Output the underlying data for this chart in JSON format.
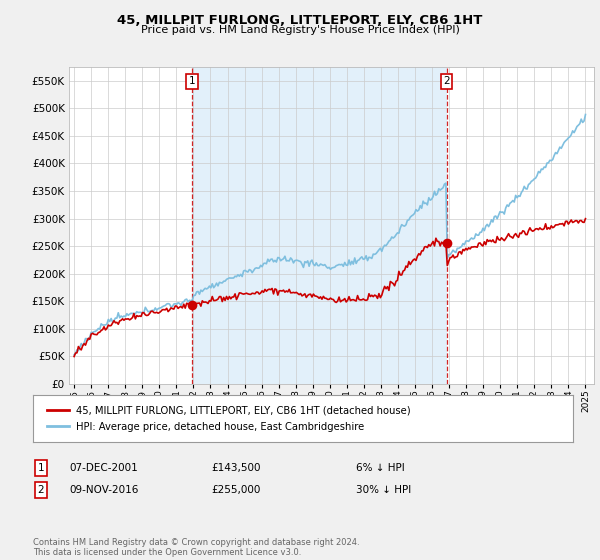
{
  "title": "45, MILLPIT FURLONG, LITTLEPORT, ELY, CB6 1HT",
  "subtitle": "Price paid vs. HM Land Registry's House Price Index (HPI)",
  "ytick_values": [
    0,
    50000,
    100000,
    150000,
    200000,
    250000,
    300000,
    350000,
    400000,
    450000,
    500000,
    550000
  ],
  "ylim": [
    0,
    575000
  ],
  "hpi_color": "#7fbfdf",
  "hpi_fill_color": "#d6eaf8",
  "price_color": "#cc0000",
  "vline_color": "#cc0000",
  "marker1_year": 2001.92,
  "marker1_value": 143500,
  "marker2_year": 2016.85,
  "marker2_value": 255000,
  "legend_label1": "45, MILLPIT FURLONG, LITTLEPORT, ELY, CB6 1HT (detached house)",
  "legend_label2": "HPI: Average price, detached house, East Cambridgeshire",
  "table_rows": [
    {
      "num": "1",
      "date": "07-DEC-2001",
      "price": "£143,500",
      "pct": "6% ↓ HPI"
    },
    {
      "num": "2",
      "date": "09-NOV-2016",
      "price": "£255,000",
      "pct": "30% ↓ HPI"
    }
  ],
  "footer": "Contains HM Land Registry data © Crown copyright and database right 2024.\nThis data is licensed under the Open Government Licence v3.0.",
  "bg_color": "#f0f0f0",
  "plot_bg": "#ffffff",
  "grid_color": "#cccccc"
}
